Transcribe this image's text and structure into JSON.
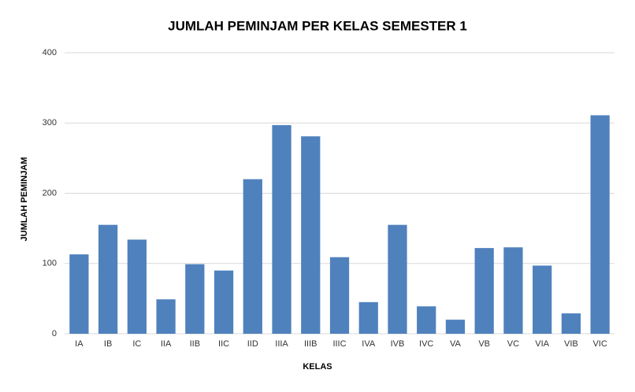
{
  "chart_data": {
    "type": "bar",
    "title": "JUMLAH PEMINJAM PER KELAS SEMESTER 1",
    "x_label": "KELAS",
    "y_label": "JUMLAH PEMINJAM",
    "categories": [
      "IA",
      "IB",
      "IC",
      "IIA",
      "IIB",
      "IIC",
      "IID",
      "IIIA",
      "IIIB",
      "IIIC",
      "IVA",
      "IVB",
      "IVC",
      "VA",
      "VB",
      "VC",
      "VIA",
      "VIB",
      "VIC"
    ],
    "values": [
      113,
      155,
      134,
      49,
      99,
      90,
      220,
      297,
      281,
      109,
      45,
      155,
      39,
      20,
      122,
      123,
      97,
      29,
      311
    ],
    "color": "#4f81bd",
    "ylim": [
      0,
      400
    ],
    "yticks": [
      0,
      100,
      200,
      300,
      400
    ],
    "grid": true
  }
}
